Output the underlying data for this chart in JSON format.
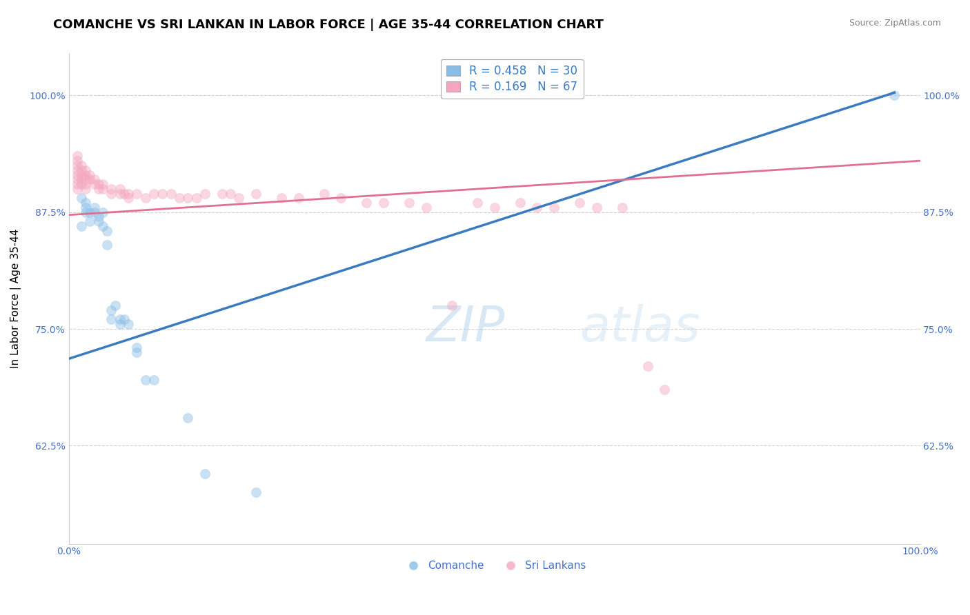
{
  "title": "COMANCHE VS SRI LANKAN IN LABOR FORCE | AGE 35-44 CORRELATION CHART",
  "source": "Source: ZipAtlas.com",
  "ylabel": "In Labor Force | Age 35-44",
  "xlim": [
    0.0,
    1.0
  ],
  "ylim": [
    0.52,
    1.045
  ],
  "y_ticks": [
    0.625,
    0.75,
    0.875,
    1.0
  ],
  "y_tick_labels": [
    "62.5%",
    "75.0%",
    "87.5%",
    "100.0%"
  ],
  "x_ticks": [
    0.0,
    1.0
  ],
  "x_tick_labels": [
    "0.0%",
    "100.0%"
  ],
  "comanche_color": "#88bde6",
  "srilankans_color": "#f4a6be",
  "comanche_scatter": [
    [
      0.015,
      0.89
    ],
    [
      0.015,
      0.86
    ],
    [
      0.02,
      0.885
    ],
    [
      0.02,
      0.88
    ],
    [
      0.02,
      0.875
    ],
    [
      0.025,
      0.875
    ],
    [
      0.025,
      0.865
    ],
    [
      0.03,
      0.88
    ],
    [
      0.03,
      0.875
    ],
    [
      0.035,
      0.87
    ],
    [
      0.035,
      0.865
    ],
    [
      0.04,
      0.875
    ],
    [
      0.04,
      0.86
    ],
    [
      0.045,
      0.855
    ],
    [
      0.045,
      0.84
    ],
    [
      0.05,
      0.77
    ],
    [
      0.05,
      0.76
    ],
    [
      0.055,
      0.775
    ],
    [
      0.06,
      0.76
    ],
    [
      0.06,
      0.755
    ],
    [
      0.065,
      0.76
    ],
    [
      0.07,
      0.755
    ],
    [
      0.08,
      0.73
    ],
    [
      0.08,
      0.725
    ],
    [
      0.09,
      0.695
    ],
    [
      0.1,
      0.695
    ],
    [
      0.14,
      0.655
    ],
    [
      0.16,
      0.595
    ],
    [
      0.22,
      0.575
    ],
    [
      0.97,
      1.0
    ]
  ],
  "srilankans_scatter": [
    [
      0.01,
      0.935
    ],
    [
      0.01,
      0.93
    ],
    [
      0.01,
      0.925
    ],
    [
      0.01,
      0.92
    ],
    [
      0.01,
      0.915
    ],
    [
      0.01,
      0.91
    ],
    [
      0.01,
      0.905
    ],
    [
      0.01,
      0.9
    ],
    [
      0.015,
      0.925
    ],
    [
      0.015,
      0.92
    ],
    [
      0.015,
      0.915
    ],
    [
      0.015,
      0.91
    ],
    [
      0.015,
      0.905
    ],
    [
      0.02,
      0.92
    ],
    [
      0.02,
      0.915
    ],
    [
      0.02,
      0.91
    ],
    [
      0.02,
      0.905
    ],
    [
      0.02,
      0.9
    ],
    [
      0.025,
      0.915
    ],
    [
      0.025,
      0.91
    ],
    [
      0.03,
      0.91
    ],
    [
      0.03,
      0.905
    ],
    [
      0.035,
      0.905
    ],
    [
      0.035,
      0.9
    ],
    [
      0.04,
      0.905
    ],
    [
      0.04,
      0.9
    ],
    [
      0.05,
      0.9
    ],
    [
      0.05,
      0.895
    ],
    [
      0.06,
      0.9
    ],
    [
      0.06,
      0.895
    ],
    [
      0.065,
      0.895
    ],
    [
      0.07,
      0.895
    ],
    [
      0.07,
      0.89
    ],
    [
      0.08,
      0.895
    ],
    [
      0.09,
      0.89
    ],
    [
      0.1,
      0.895
    ],
    [
      0.11,
      0.895
    ],
    [
      0.12,
      0.895
    ],
    [
      0.13,
      0.89
    ],
    [
      0.14,
      0.89
    ],
    [
      0.15,
      0.89
    ],
    [
      0.16,
      0.895
    ],
    [
      0.18,
      0.895
    ],
    [
      0.19,
      0.895
    ],
    [
      0.2,
      0.89
    ],
    [
      0.22,
      0.895
    ],
    [
      0.25,
      0.89
    ],
    [
      0.27,
      0.89
    ],
    [
      0.3,
      0.895
    ],
    [
      0.32,
      0.89
    ],
    [
      0.35,
      0.885
    ],
    [
      0.37,
      0.885
    ],
    [
      0.4,
      0.885
    ],
    [
      0.42,
      0.88
    ],
    [
      0.45,
      0.775
    ],
    [
      0.48,
      0.885
    ],
    [
      0.5,
      0.88
    ],
    [
      0.53,
      0.885
    ],
    [
      0.55,
      0.88
    ],
    [
      0.57,
      0.88
    ],
    [
      0.6,
      0.885
    ],
    [
      0.62,
      0.88
    ],
    [
      0.65,
      0.88
    ],
    [
      0.68,
      0.71
    ],
    [
      0.7,
      0.685
    ]
  ],
  "comanche_line": {
    "x0": 0.0,
    "y0": 0.718,
    "x1": 0.97,
    "y1": 1.003
  },
  "srilankans_line": {
    "x0": 0.0,
    "y0": 0.872,
    "x1": 1.0,
    "y1": 0.93
  },
  "comanche_line_color": "#3a7abf",
  "srilankans_line_color": "#e07090",
  "grid_color": "#d0d0d0",
  "background_color": "#ffffff",
  "dot_size": 100,
  "dot_alpha": 0.45,
  "title_fontsize": 13,
  "axis_label_fontsize": 11,
  "tick_fontsize": 10,
  "source_fontsize": 9,
  "legend_fontsize": 12,
  "tick_color": "#4472c4"
}
